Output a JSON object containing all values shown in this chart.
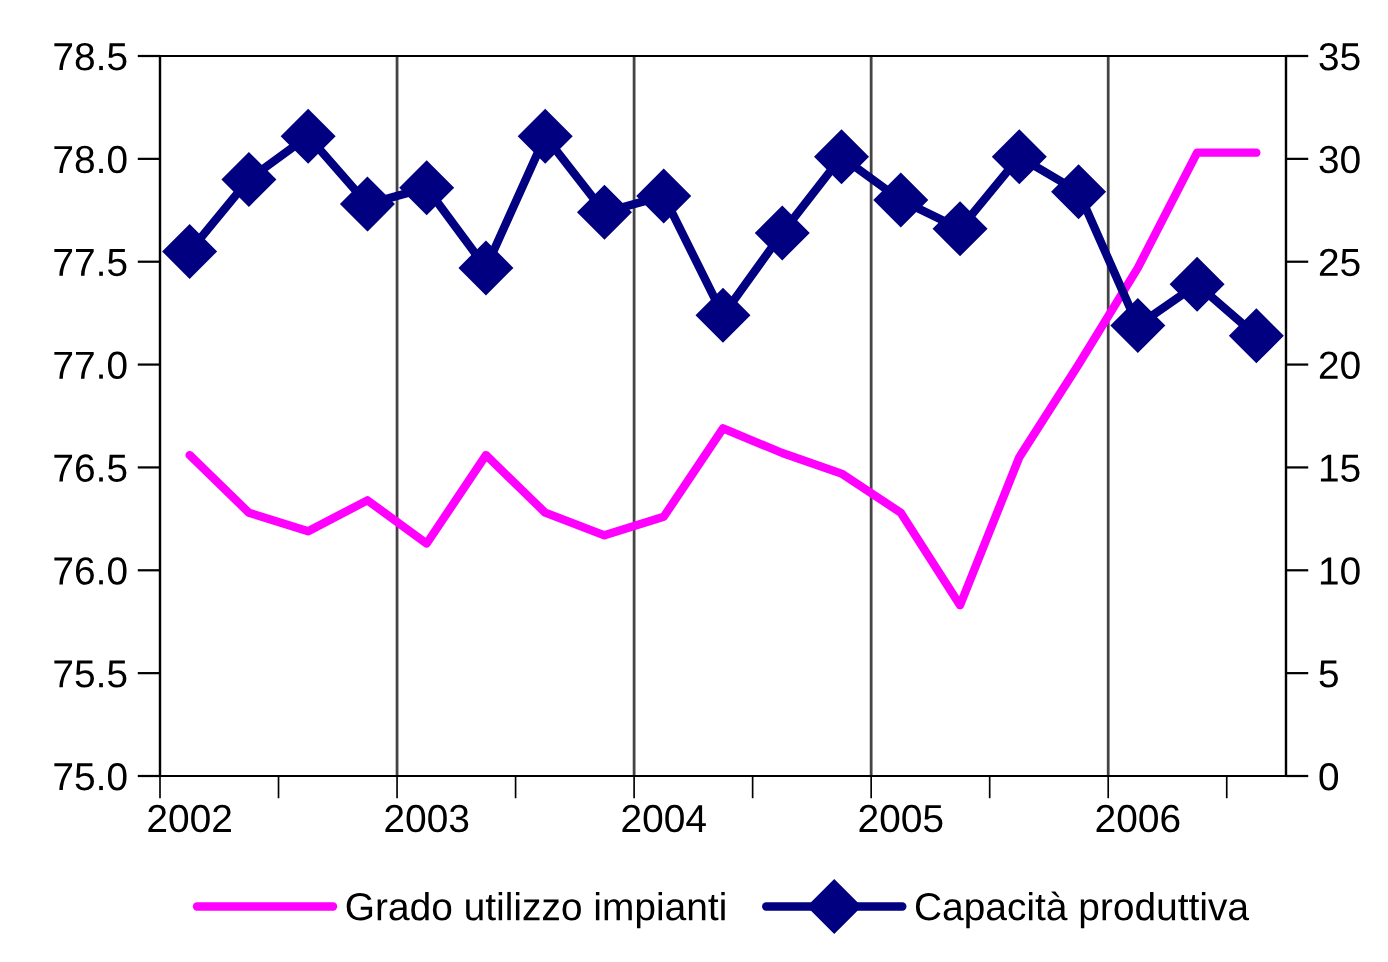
{
  "chart_data": {
    "type": "line",
    "categories": [
      "2002",
      null,
      null,
      null,
      "2003",
      null,
      null,
      null,
      "2004",
      null,
      null,
      null,
      "2005",
      null,
      null,
      null,
      "2006",
      null,
      null
    ],
    "series": [
      {
        "name": "Grado utilizzo impianti",
        "color": "#ff00ff",
        "marker": "none",
        "values": [
          76.56,
          76.28,
          76.19,
          76.34,
          76.13,
          76.56,
          76.28,
          76.17,
          76.26,
          76.69,
          76.57,
          76.47,
          76.28,
          75.83,
          76.55,
          77.0,
          77.47,
          78.03,
          78.03
        ]
      },
      {
        "name": "Capacità produttiva",
        "color": "#000080",
        "marker": "diamond",
        "axis": "y2",
        "values": [
          25.5,
          29.0,
          31.1,
          27.8,
          28.6,
          24.7,
          31.1,
          27.4,
          28.2,
          22.4,
          26.4,
          30.1,
          28.0,
          26.6,
          30.1,
          28.4,
          21.9,
          23.9,
          21.4
        ]
      }
    ],
    "ylim": [
      75.0,
      78.5
    ],
    "yticks": [
      {
        "value": 75.0,
        "label": "75.0"
      },
      {
        "value": 75.5,
        "label": "75.5"
      },
      {
        "value": 76.0,
        "label": "76.0"
      },
      {
        "value": 76.5,
        "label": "76.5"
      },
      {
        "value": 77.0,
        "label": "77.0"
      },
      {
        "value": 77.5,
        "label": "77.5"
      },
      {
        "value": 78.0,
        "label": "78.0"
      },
      {
        "value": 78.5,
        "label": "78.5"
      }
    ],
    "y2lim": [
      0,
      35
    ],
    "y2ticks": [
      0,
      5,
      10,
      15,
      20,
      25,
      30,
      35
    ],
    "grid": "x",
    "legend": "bottom",
    "line_style": "solid"
  }
}
